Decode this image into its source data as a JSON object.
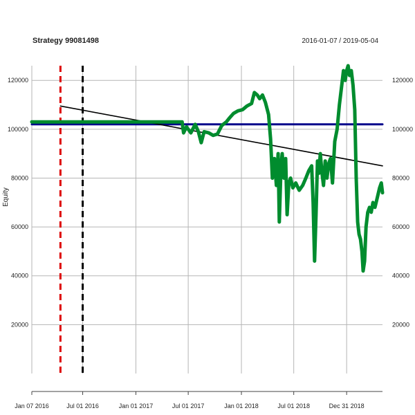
{
  "chart_data": {
    "type": "line",
    "title": "Strategy 99081498",
    "date_range": "2016-01-07 / 2019-05-04",
    "xlabel": "",
    "ylabel": "Equity",
    "x_range": [
      "2016-01-07",
      "2019-05-04"
    ],
    "ylim": [
      0,
      126000
    ],
    "x_ticks": [
      {
        "date": "2016-01-07",
        "label": "Jan 07 2016"
      },
      {
        "date": "2016-07-01",
        "label": "Jul 01 2016"
      },
      {
        "date": "2017-01-01",
        "label": "Jan 01 2017"
      },
      {
        "date": "2017-07-01",
        "label": "Jul 01 2017"
      },
      {
        "date": "2018-01-01",
        "label": "Jan 01 2018"
      },
      {
        "date": "2018-07-01",
        "label": "Jul 01 2018"
      },
      {
        "date": "2018-12-31",
        "label": "Dec 31 2018"
      }
    ],
    "y_ticks": [
      {
        "value": 20000,
        "label": "20000"
      },
      {
        "value": 40000,
        "label": "40000"
      },
      {
        "value": 60000,
        "label": "60000"
      },
      {
        "value": 80000,
        "label": "80000"
      },
      {
        "value": 100000,
        "label": "100000"
      },
      {
        "value": 120000,
        "label": "120000"
      }
    ],
    "grid": true,
    "series": [
      {
        "color": "#008C2E",
        "points": [
          [
            "2016-01-07",
            103000
          ],
          [
            "2016-04-01",
            103000
          ],
          [
            "2016-07-01",
            103000
          ],
          [
            "2016-10-01",
            103000
          ],
          [
            "2017-01-01",
            103000
          ],
          [
            "2017-04-01",
            103000
          ],
          [
            "2017-06-10",
            103000
          ],
          [
            "2017-06-15",
            98500
          ],
          [
            "2017-06-25",
            101000
          ],
          [
            "2017-07-10",
            98500
          ],
          [
            "2017-07-25",
            102000
          ],
          [
            "2017-08-05",
            99000
          ],
          [
            "2017-08-15",
            94500
          ],
          [
            "2017-08-25",
            99000
          ],
          [
            "2017-09-10",
            98500
          ],
          [
            "2017-09-25",
            97500
          ],
          [
            "2017-10-10",
            98000
          ],
          [
            "2017-10-25",
            101500
          ],
          [
            "2017-11-10",
            103000
          ],
          [
            "2017-11-20",
            104500
          ],
          [
            "2017-12-05",
            106500
          ],
          [
            "2017-12-20",
            107500
          ],
          [
            "2018-01-05",
            108000
          ],
          [
            "2018-01-20",
            109500
          ],
          [
            "2018-02-05",
            110500
          ],
          [
            "2018-02-15",
            115000
          ],
          [
            "2018-02-25",
            114000
          ],
          [
            "2018-03-05",
            112500
          ],
          [
            "2018-03-15",
            114000
          ],
          [
            "2018-03-25",
            111000
          ],
          [
            "2018-04-05",
            106000
          ],
          [
            "2018-04-12",
            96000
          ],
          [
            "2018-04-18",
            80000
          ],
          [
            "2018-04-25",
            88000
          ],
          [
            "2018-05-02",
            77000
          ],
          [
            "2018-05-08",
            90000
          ],
          [
            "2018-05-12",
            62000
          ],
          [
            "2018-05-18",
            85000
          ],
          [
            "2018-05-22",
            90000
          ],
          [
            "2018-05-28",
            80000
          ],
          [
            "2018-06-03",
            88000
          ],
          [
            "2018-06-08",
            65000
          ],
          [
            "2018-06-14",
            78000
          ],
          [
            "2018-06-20",
            80000
          ],
          [
            "2018-06-28",
            76000
          ],
          [
            "2018-07-08",
            78000
          ],
          [
            "2018-07-20",
            75000
          ],
          [
            "2018-08-01",
            77000
          ],
          [
            "2018-08-12",
            80000
          ],
          [
            "2018-08-22",
            83000
          ],
          [
            "2018-09-01",
            85000
          ],
          [
            "2018-09-06",
            70000
          ],
          [
            "2018-09-11",
            46000
          ],
          [
            "2018-09-16",
            65000
          ],
          [
            "2018-09-21",
            87000
          ],
          [
            "2018-09-26",
            82000
          ],
          [
            "2018-10-01",
            90000
          ],
          [
            "2018-10-06",
            83000
          ],
          [
            "2018-10-12",
            77000
          ],
          [
            "2018-10-18",
            87000
          ],
          [
            "2018-10-24",
            80000
          ],
          [
            "2018-10-30",
            86000
          ],
          [
            "2018-11-05",
            88000
          ],
          [
            "2018-11-12",
            78000
          ],
          [
            "2018-11-20",
            95000
          ],
          [
            "2018-11-28",
            100000
          ],
          [
            "2018-12-06",
            110000
          ],
          [
            "2018-12-14",
            118000
          ],
          [
            "2018-12-20",
            124000
          ],
          [
            "2018-12-26",
            120000
          ],
          [
            "2018-12-31",
            124000
          ],
          [
            "2019-01-05",
            126000
          ],
          [
            "2019-01-10",
            122000
          ],
          [
            "2019-01-16",
            124000
          ],
          [
            "2019-01-22",
            118000
          ],
          [
            "2019-01-28",
            108000
          ],
          [
            "2019-02-02",
            80000
          ],
          [
            "2019-02-07",
            62000
          ],
          [
            "2019-02-12",
            57000
          ],
          [
            "2019-02-17",
            55000
          ],
          [
            "2019-02-22",
            50000
          ],
          [
            "2019-02-26",
            42000
          ],
          [
            "2019-03-03",
            46000
          ],
          [
            "2019-03-08",
            60000
          ],
          [
            "2019-03-14",
            66000
          ],
          [
            "2019-03-20",
            68000
          ],
          [
            "2019-03-26",
            66000
          ],
          [
            "2019-04-01",
            70000
          ],
          [
            "2019-04-08",
            68000
          ],
          [
            "2019-04-16",
            72000
          ],
          [
            "2019-04-24",
            76000
          ],
          [
            "2019-04-30",
            78000
          ],
          [
            "2019-05-04",
            74000
          ]
        ]
      },
      {
        "color": "#00008B",
        "points": [
          [
            "2016-01-07",
            102000
          ],
          [
            "2019-05-04",
            102000
          ]
        ]
      },
      {
        "color": "#000000",
        "points": [
          [
            "2016-04-15",
            109500
          ],
          [
            "2019-05-04",
            85000
          ]
        ]
      }
    ],
    "vlines": [
      {
        "date": "2016-04-15",
        "color": "#DD0000",
        "style": "dashed"
      },
      {
        "date": "2016-07-01",
        "color": "#000000",
        "style": "dashed"
      }
    ]
  }
}
